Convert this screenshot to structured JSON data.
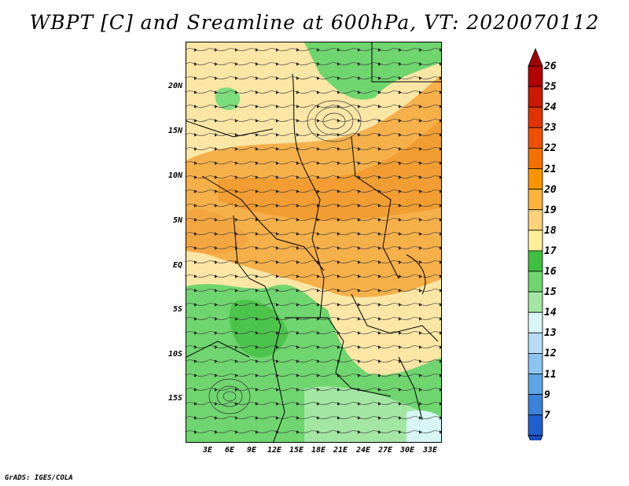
{
  "title": "WBPT [C] and Sreamline at 600hPa, VT: 2020070112",
  "credit": "GrADS: IGES/COLA",
  "lat_labels": [
    "20N",
    "15N",
    "10N",
    "5N",
    "EQ",
    "5S",
    "10S",
    "15S"
  ],
  "lon_labels": [
    "3E",
    "6E",
    "9E",
    "12E",
    "15E",
    "18E",
    "21E",
    "24E",
    "27E",
    "30E",
    "33E"
  ],
  "colorbar": {
    "labels": [
      "26",
      "25",
      "24",
      "23",
      "22",
      "21",
      "20",
      "19",
      "18",
      "17",
      "16",
      "15",
      "14",
      "13",
      "12",
      "11",
      "9",
      "7"
    ],
    "colors": [
      "#b30000",
      "#cc1a00",
      "#e03300",
      "#ee5000",
      "#f57000",
      "#f99400",
      "#fbb33a",
      "#fdd27a",
      "#fbef9a",
      "#3fbf3f",
      "#6fd56f",
      "#a3e6a3",
      "#d7f5f5",
      "#b8dcf5",
      "#8cc4f0",
      "#5ca4e6",
      "#3a82da",
      "#1f5fd0"
    ],
    "top_arrow_color": "#a00000",
    "bottom_arrow_color": "#1a4fc0"
  }
}
